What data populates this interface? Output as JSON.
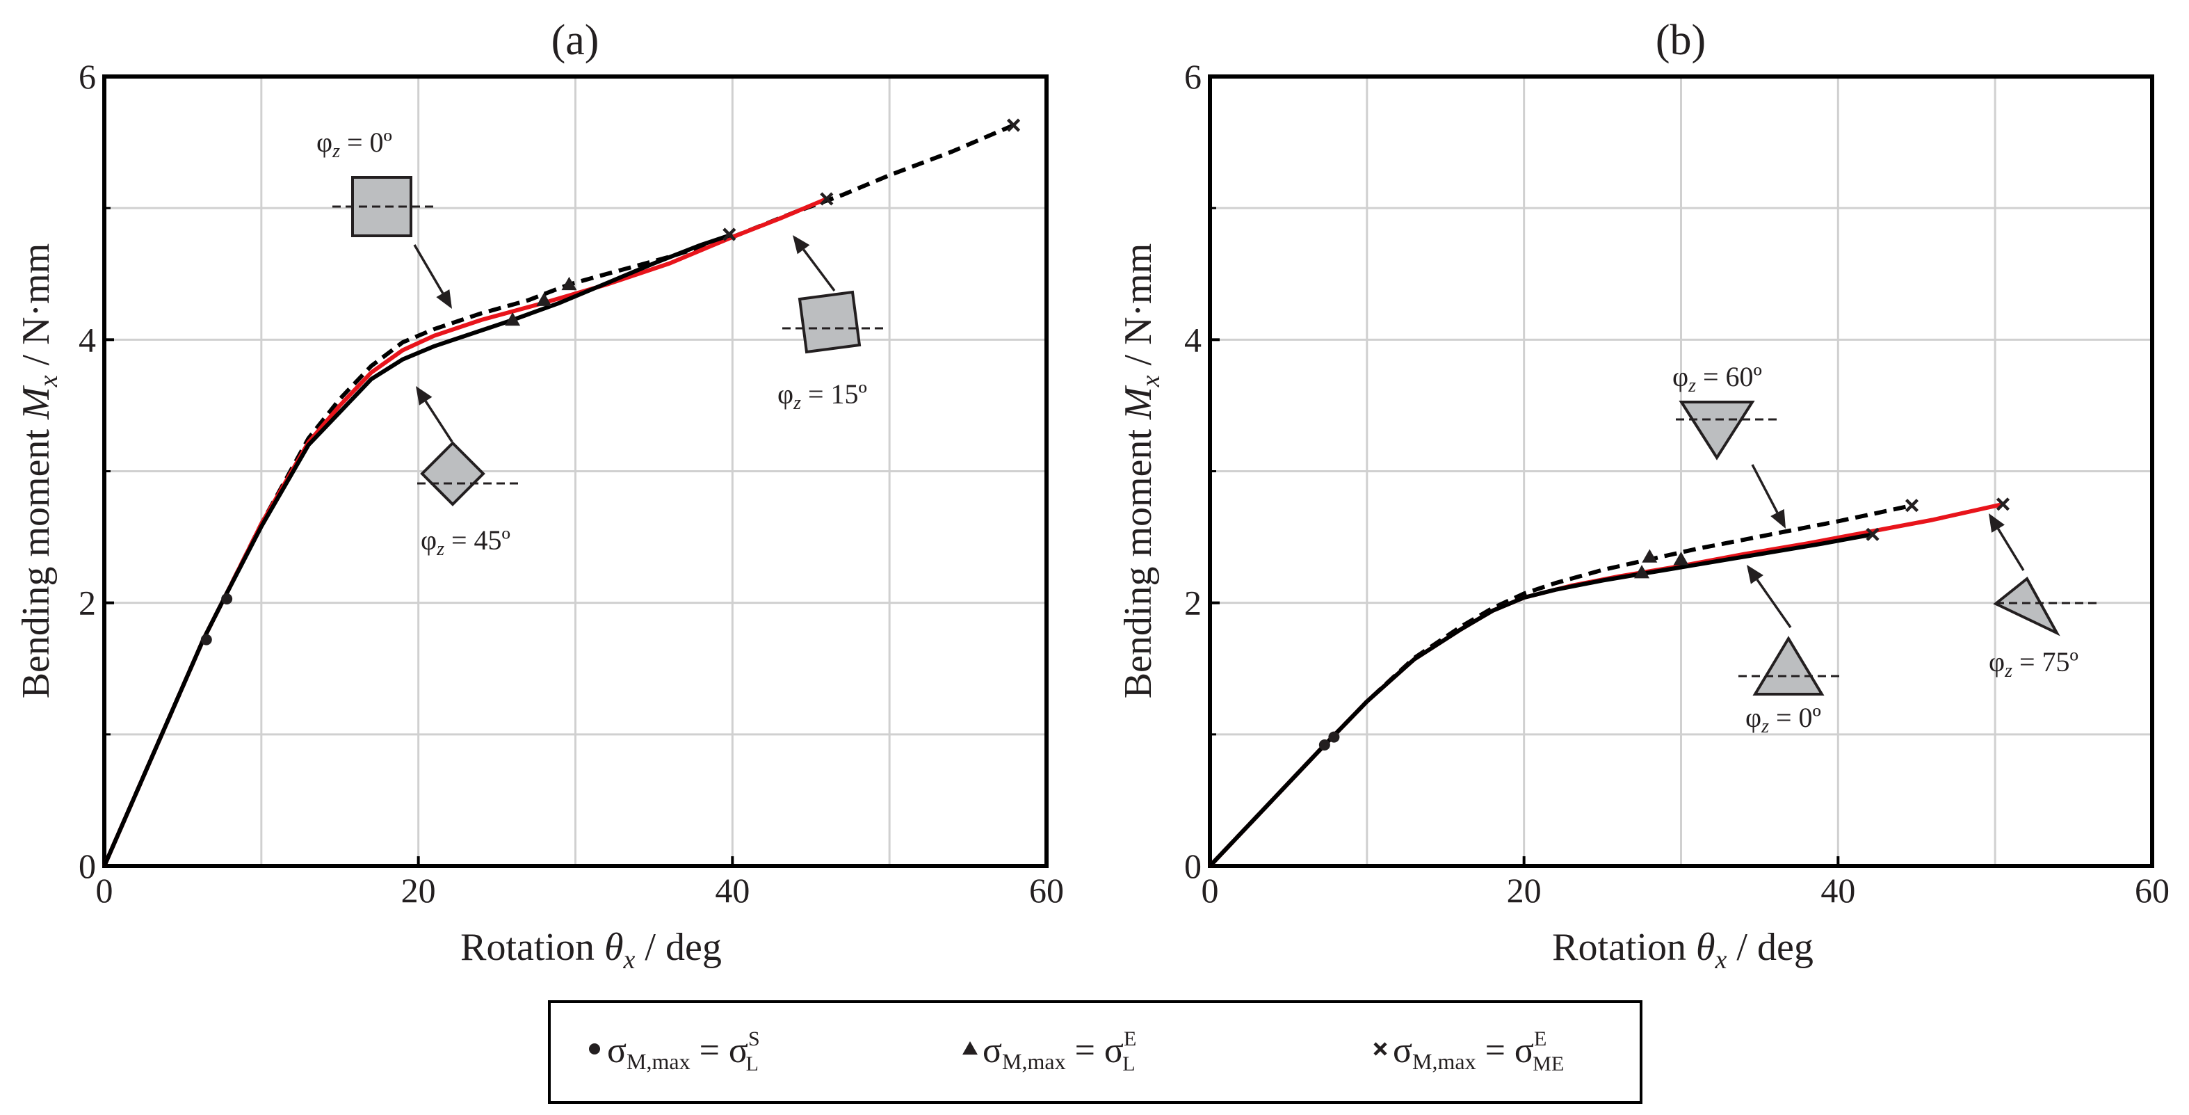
{
  "chart_data": [
    {
      "panel": "(a)",
      "type": "line",
      "title": "(a)",
      "xlabel": "Rotation θx / deg",
      "ylabel": "Bending moment Mx / N·mm",
      "xlim": [
        0,
        60
      ],
      "ylim": [
        0,
        6
      ],
      "xticks": [
        "0",
        "20",
        "40",
        "60"
      ],
      "yticks": [
        "0",
        "2",
        "4",
        "6"
      ],
      "grid": true,
      "series": [
        {
          "name": "φz = 0º",
          "style": "dashed",
          "color": "#000000",
          "x": [
            0,
            6.3,
            7.7,
            10,
            13,
            15,
            17,
            19,
            21,
            24,
            27,
            29.6,
            32,
            36,
            40,
            44,
            47,
            50,
            54,
            57.9
          ],
          "y": [
            0,
            1.72,
            2.05,
            2.6,
            3.25,
            3.55,
            3.8,
            3.98,
            4.08,
            4.2,
            4.3,
            4.42,
            4.5,
            4.63,
            4.78,
            4.97,
            5.1,
            5.25,
            5.43,
            5.63
          ],
          "markers": [
            {
              "x": 29.6,
              "y": 4.42,
              "type": "triangle"
            },
            {
              "x": 57.9,
              "y": 5.63,
              "type": "cross"
            }
          ]
        },
        {
          "name": "φz = 15º",
          "style": "solid",
          "color": "#e8141b",
          "x": [
            0,
            6.3,
            7.7,
            10,
            13,
            15,
            17,
            19,
            21,
            24,
            28,
            32,
            36,
            40,
            43,
            46
          ],
          "y": [
            0,
            1.72,
            2.05,
            2.6,
            3.22,
            3.5,
            3.75,
            3.92,
            4.03,
            4.15,
            4.28,
            4.42,
            4.58,
            4.78,
            4.92,
            5.07
          ],
          "markers": [
            {
              "x": 28,
              "y": 4.3,
              "type": "triangle"
            },
            {
              "x": 46,
              "y": 5.07,
              "type": "cross"
            }
          ]
        },
        {
          "name": "φz = 45º",
          "style": "solid",
          "color": "#000000",
          "x": [
            0,
            6.3,
            7.7,
            10,
            13,
            15,
            17,
            19,
            21,
            24,
            26,
            29,
            32,
            35,
            38,
            40
          ],
          "y": [
            0,
            1.72,
            2.05,
            2.58,
            3.2,
            3.45,
            3.7,
            3.85,
            3.95,
            4.07,
            4.15,
            4.28,
            4.43,
            4.58,
            4.72,
            4.8
          ],
          "markers": [
            {
              "x": 6.5,
              "y": 1.72,
              "type": "circle"
            },
            {
              "x": 7.8,
              "y": 2.03,
              "type": "circle"
            },
            {
              "x": 26,
              "y": 4.15,
              "type": "triangle"
            },
            {
              "x": 39.8,
              "y": 4.8,
              "type": "cross"
            }
          ]
        }
      ],
      "annotations": [
        "φz = 0º",
        "φz = 15º",
        "φz = 45º"
      ]
    },
    {
      "panel": "(b)",
      "type": "line",
      "title": "(b)",
      "xlabel": "Rotation θx / deg",
      "ylabel": "Bending moment Mx / N·mm",
      "xlim": [
        0,
        60
      ],
      "ylim": [
        0,
        6
      ],
      "xticks": [
        "0",
        "20",
        "40",
        "60"
      ],
      "yticks": [
        "0",
        "2",
        "4",
        "6"
      ],
      "grid": true,
      "series": [
        {
          "name": "φz = 60º",
          "style": "dashed",
          "color": "#000000",
          "x": [
            0,
            7.3,
            7.8,
            10,
            13,
            16,
            18,
            20,
            22,
            25,
            28,
            31,
            34,
            37,
            40,
            42,
            44.7
          ],
          "y": [
            0,
            0.92,
            0.98,
            1.25,
            1.58,
            1.82,
            1.96,
            2.07,
            2.15,
            2.25,
            2.33,
            2.41,
            2.48,
            2.55,
            2.62,
            2.67,
            2.74
          ],
          "markers": [
            {
              "x": 28,
              "y": 2.35,
              "type": "triangle"
            },
            {
              "x": 44.7,
              "y": 2.74,
              "type": "cross"
            }
          ]
        },
        {
          "name": "φz = 75º",
          "style": "solid",
          "color": "#e8141b",
          "x": [
            0,
            7.3,
            7.8,
            10,
            13,
            16,
            18,
            20,
            23,
            26,
            30,
            34,
            38,
            42,
            46,
            50.5
          ],
          "y": [
            0,
            0.92,
            0.98,
            1.25,
            1.57,
            1.8,
            1.94,
            2.04,
            2.13,
            2.2,
            2.28,
            2.37,
            2.45,
            2.54,
            2.63,
            2.75
          ],
          "markers": [
            {
              "x": 30,
              "y": 2.33,
              "type": "triangle"
            },
            {
              "x": 50.5,
              "y": 2.75,
              "type": "cross"
            }
          ]
        },
        {
          "name": "φz = 0º",
          "style": "solid",
          "color": "#000000",
          "x": [
            0,
            7.3,
            7.8,
            10,
            13,
            16,
            18,
            20,
            22,
            25,
            27.5,
            30,
            33,
            36,
            39,
            42.2
          ],
          "y": [
            0,
            0.92,
            0.98,
            1.25,
            1.57,
            1.8,
            1.94,
            2.04,
            2.1,
            2.17,
            2.22,
            2.27,
            2.33,
            2.39,
            2.45,
            2.52
          ],
          "markers": [
            {
              "x": 7.3,
              "y": 0.92,
              "type": "circle"
            },
            {
              "x": 7.9,
              "y": 0.98,
              "type": "circle"
            },
            {
              "x": 27.5,
              "y": 2.23,
              "type": "triangle"
            },
            {
              "x": 42.2,
              "y": 2.52,
              "type": "cross"
            }
          ]
        }
      ],
      "annotations": [
        "φz = 60º",
        "φz = 0º",
        "φz = 75º"
      ]
    }
  ],
  "labels": {
    "panel_a": "(a)",
    "panel_b": "(b)",
    "ylabel_prefix": "Bending moment",
    "ylabel_var": "M",
    "ylabel_sub": "x",
    "ylabel_suffix": "/ N·mm",
    "xlabel_prefix": "Rotation",
    "xlabel_var": "θ",
    "xlabel_sub": "x",
    "xlabel_suffix": "/ deg",
    "phi": "φ",
    "phi_sub": "z"
  },
  "annotations_a": [
    {
      "id": "phi0",
      "text": "= 0º"
    },
    {
      "id": "phi15",
      "text": "= 15º"
    },
    {
      "id": "phi45",
      "text": "= 45º"
    }
  ],
  "annotations_b": [
    {
      "id": "phi60",
      "text": "= 60º"
    },
    {
      "id": "phi0b",
      "text": "= 0º"
    },
    {
      "id": "phi75",
      "text": "= 75º"
    }
  ],
  "legend": [
    {
      "marker": "circle",
      "lhs": "σ",
      "lhs_sub": "M,max",
      "eq": " = σ",
      "rhs_sup": "S",
      "rhs_sub": "L"
    },
    {
      "marker": "triangle",
      "lhs": "σ",
      "lhs_sub": "M,max",
      "eq": " = σ",
      "rhs_sup": "E",
      "rhs_sub": "L"
    },
    {
      "marker": "cross",
      "lhs": "σ",
      "lhs_sub": "M,max",
      "eq": " = σ",
      "rhs_sup": "E",
      "rhs_sub": "ME"
    }
  ],
  "colors": {
    "axis": "#000000",
    "grid": "#d0d0d0",
    "red": "#e8141b",
    "shape_fill": "#bcbec0",
    "text": "#231f20"
  }
}
